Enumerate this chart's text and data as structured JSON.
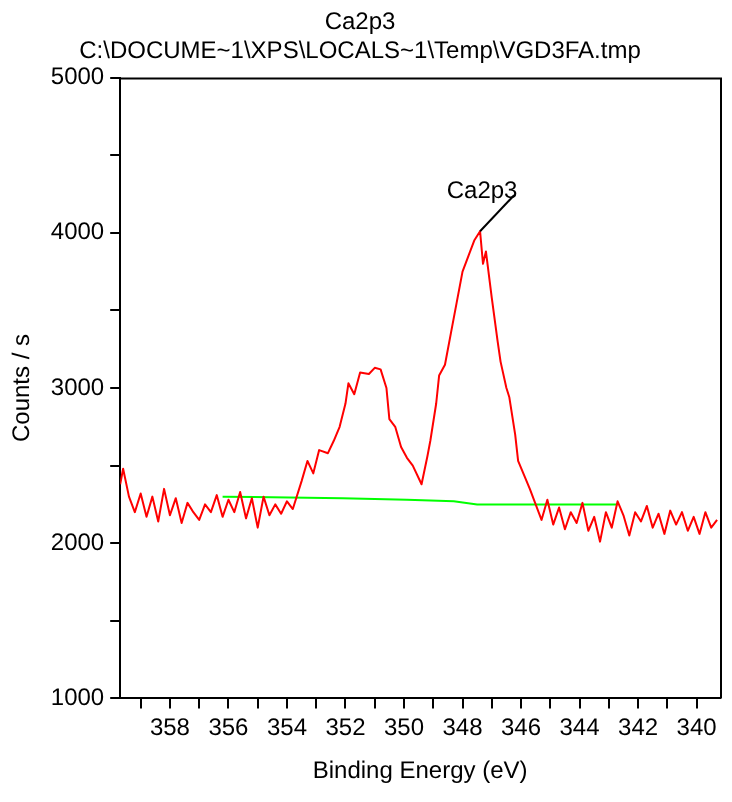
{
  "chart_data": {
    "type": "line",
    "title": "Ca2p3",
    "subtitle": "C:\\DOCUME~1\\XPS\\LOCALS~1\\Temp\\VGD3FA.tmp",
    "xlabel": "Binding Energy (eV)",
    "ylabel": "Counts / s",
    "xlim": [
      359.7,
      339.2
    ],
    "xticks": [
      {
        "value": 359,
        "label": null
      },
      358,
      {
        "value": 357,
        "label": null
      },
      356,
      {
        "value": 355,
        "label": null
      },
      354,
      {
        "value": 353,
        "label": null
      },
      352,
      {
        "value": 351,
        "label": null
      },
      350,
      {
        "value": 349,
        "label": null
      },
      348,
      {
        "value": 347,
        "label": null
      },
      346,
      {
        "value": 345,
        "label": null
      },
      344,
      {
        "value": 343,
        "label": null
      },
      342,
      {
        "value": 341,
        "label": null
      },
      340
    ],
    "ylim": [
      1000,
      5000
    ],
    "yticks": [
      1000,
      {
        "value": 1500,
        "label": null
      },
      2000,
      {
        "value": 2500,
        "label": null
      },
      3000,
      {
        "value": 3500,
        "label": null
      },
      4000,
      {
        "value": 4500,
        "label": null
      },
      5000
    ],
    "grid": false,
    "legend": false,
    "marker": "none",
    "line_style": "solid",
    "series": [
      {
        "color": "#ff0000",
        "x": [
          359.7,
          359.6,
          359.4,
          359.2,
          359.0,
          358.8,
          358.6,
          358.4,
          358.2,
          358.0,
          357.8,
          357.6,
          357.4,
          357.2,
          357.0,
          356.8,
          356.6,
          356.4,
          356.2,
          356.0,
          355.8,
          355.6,
          355.4,
          355.2,
          355.0,
          354.8,
          354.6,
          354.4,
          354.2,
          354.0,
          353.8,
          353.5,
          353.3,
          353.1,
          352.9,
          352.6,
          352.4,
          352.2,
          352.0,
          351.9,
          351.7,
          351.5,
          351.2,
          351.0,
          350.8,
          350.6,
          350.5,
          350.3,
          350.1,
          349.9,
          349.7,
          349.4,
          349.2,
          349.1,
          348.9,
          348.8,
          348.6,
          348.4,
          348.2,
          348.0,
          347.8,
          347.6,
          347.4,
          347.3,
          347.2,
          347.0,
          346.8,
          346.7,
          346.5,
          346.4,
          346.2,
          346.1,
          345.9,
          345.7,
          345.5,
          345.3,
          345.1,
          344.9,
          344.7,
          344.5,
          344.3,
          344.1,
          343.9,
          343.7,
          343.5,
          343.3,
          343.1,
          342.9,
          342.7,
          342.5,
          342.3,
          342.1,
          341.9,
          341.7,
          341.5,
          341.3,
          341.1,
          340.9,
          340.7,
          340.5,
          340.3,
          340.1,
          339.9,
          339.7,
          339.5,
          339.3
        ],
        "values": [
          2380,
          2480,
          2300,
          2200,
          2320,
          2170,
          2300,
          2140,
          2350,
          2180,
          2290,
          2130,
          2260,
          2200,
          2150,
          2250,
          2200,
          2310,
          2170,
          2280,
          2200,
          2330,
          2160,
          2290,
          2100,
          2300,
          2180,
          2250,
          2190,
          2270,
          2220,
          2400,
          2530,
          2450,
          2600,
          2580,
          2660,
          2750,
          2900,
          3030,
          2960,
          3100,
          3090,
          3130,
          3120,
          3000,
          2800,
          2750,
          2620,
          2550,
          2500,
          2380,
          2560,
          2660,
          2900,
          3080,
          3150,
          3350,
          3550,
          3750,
          3850,
          3950,
          4010,
          3800,
          3880,
          3580,
          3300,
          3170,
          3000,
          2940,
          2700,
          2530,
          2440,
          2350,
          2250,
          2150,
          2280,
          2120,
          2230,
          2090,
          2200,
          2130,
          2260,
          2080,
          2170,
          2010,
          2200,
          2100,
          2270,
          2180,
          2050,
          2200,
          2140,
          2240,
          2100,
          2190,
          2060,
          2210,
          2120,
          2200,
          2080,
          2170,
          2060,
          2200,
          2100,
          2150
        ]
      },
      {
        "color": "#00ff00",
        "x": [
          356.2,
          352.1,
          349.9,
          348.3,
          347.5,
          342.7
        ],
        "values": [
          2300,
          2290,
          2280,
          2270,
          2250,
          2250
        ]
      }
    ],
    "annotations": [
      {
        "text": "Ca2p3",
        "x": 347.4,
        "y": 4010
      }
    ]
  }
}
